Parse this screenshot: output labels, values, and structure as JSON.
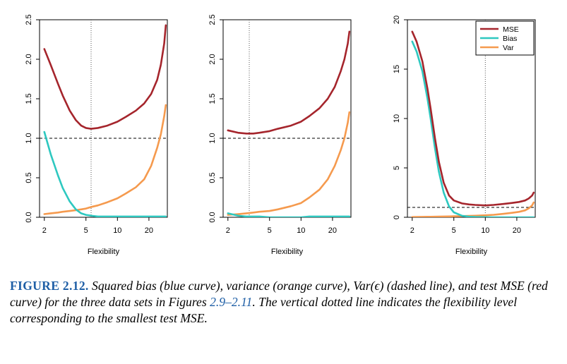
{
  "chart_data": [
    {
      "type": "line",
      "xlabel": "Flexibility",
      "x_scale": "log",
      "xlim": [
        1.8,
        30
      ],
      "ylim": [
        0,
        2.5
      ],
      "x_ticks": [
        2,
        5,
        10,
        20
      ],
      "x_tick_labels": [
        "2",
        "5",
        "10",
        "20"
      ],
      "y_ticks": [
        0,
        0.5,
        1,
        1.5,
        2,
        2.5
      ],
      "y_tick_labels": [
        "0.0",
        "0.5",
        "1.0",
        "1.5",
        "2.0",
        "2.5"
      ],
      "grid": false,
      "irreducible_error": 1.0,
      "min_mse_x": 5.6,
      "series": [
        {
          "name": "MSE",
          "color": "#a5252c",
          "x": [
            2,
            2.3,
            2.7,
            3,
            3.5,
            4,
            4.5,
            5,
            5.6,
            6.5,
            8,
            10,
            12,
            15,
            18,
            21,
            24,
            26,
            28,
            29
          ],
          "y": [
            2.13,
            1.93,
            1.69,
            1.54,
            1.35,
            1.23,
            1.16,
            1.13,
            1.12,
            1.13,
            1.16,
            1.21,
            1.27,
            1.35,
            1.44,
            1.56,
            1.74,
            1.93,
            2.2,
            2.43
          ]
        },
        {
          "name": "Bias",
          "color": "#2ec8c0",
          "x": [
            2,
            2.3,
            2.7,
            3,
            3.5,
            4,
            4.5,
            5,
            5.6,
            6.5,
            8,
            10,
            12,
            15,
            18,
            21,
            24,
            26,
            28,
            29
          ],
          "y": [
            1.08,
            0.8,
            0.53,
            0.37,
            0.2,
            0.1,
            0.05,
            0.03,
            0.02,
            0.01,
            0.01,
            0.01,
            0.01,
            0.01,
            0.01,
            0.01,
            0.01,
            0.01,
            0.01,
            0.01
          ]
        },
        {
          "name": "Var",
          "color": "#f59a4e",
          "x": [
            2,
            2.3,
            2.7,
            3,
            3.5,
            4,
            4.5,
            5,
            5.6,
            6.5,
            8,
            10,
            12,
            15,
            18,
            21,
            24,
            26,
            28,
            29
          ],
          "y": [
            0.04,
            0.05,
            0.06,
            0.07,
            0.08,
            0.09,
            0.1,
            0.11,
            0.13,
            0.15,
            0.19,
            0.24,
            0.3,
            0.38,
            0.48,
            0.65,
            0.88,
            1.05,
            1.28,
            1.42
          ]
        }
      ]
    },
    {
      "type": "line",
      "xlabel": "Flexibility",
      "x_scale": "log",
      "xlim": [
        1.8,
        30
      ],
      "ylim": [
        0,
        2.5
      ],
      "x_ticks": [
        2,
        5,
        10,
        20
      ],
      "x_tick_labels": [
        "2",
        "5",
        "10",
        "20"
      ],
      "y_ticks": [
        0,
        0.5,
        1,
        1.5,
        2,
        2.5
      ],
      "y_tick_labels": [
        "0.0",
        "0.5",
        "1.0",
        "1.5",
        "2.0",
        "2.5"
      ],
      "grid": false,
      "irreducible_error": 1.0,
      "min_mse_x": 3.2,
      "series": [
        {
          "name": "MSE",
          "color": "#a5252c",
          "x": [
            2,
            2.5,
            3,
            3.5,
            4,
            5,
            6,
            8,
            10,
            12,
            15,
            18,
            21,
            24,
            26,
            28,
            29
          ],
          "y": [
            1.1,
            1.07,
            1.06,
            1.06,
            1.07,
            1.09,
            1.12,
            1.16,
            1.21,
            1.28,
            1.38,
            1.5,
            1.65,
            1.85,
            2.0,
            2.2,
            2.35
          ]
        },
        {
          "name": "Bias",
          "color": "#2ec8c0",
          "x": [
            2,
            2.5,
            3,
            3.5,
            4,
            5,
            6,
            8,
            10,
            12,
            15,
            18,
            21,
            24,
            26,
            28,
            29
          ],
          "y": [
            0.05,
            0.02,
            0.01,
            0.01,
            0.01,
            0.0,
            0.0,
            0.0,
            0.0,
            0.01,
            0.01,
            0.01,
            0.01,
            0.01,
            0.01,
            0.01,
            0.01
          ]
        },
        {
          "name": "Var",
          "color": "#f59a4e",
          "x": [
            2,
            2.5,
            3,
            3.5,
            4,
            5,
            6,
            8,
            10,
            12,
            15,
            18,
            21,
            24,
            26,
            28,
            29
          ],
          "y": [
            0.03,
            0.04,
            0.05,
            0.06,
            0.07,
            0.08,
            0.1,
            0.14,
            0.18,
            0.25,
            0.35,
            0.48,
            0.65,
            0.85,
            1.0,
            1.2,
            1.33
          ]
        }
      ]
    },
    {
      "type": "line",
      "xlabel": "Flexibility",
      "x_scale": "log",
      "xlim": [
        1.8,
        30
      ],
      "ylim": [
        0,
        20
      ],
      "x_ticks": [
        2,
        5,
        10,
        20
      ],
      "x_tick_labels": [
        "2",
        "5",
        "10",
        "20"
      ],
      "y_ticks": [
        0,
        5,
        10,
        15,
        20
      ],
      "y_tick_labels": [
        "0",
        "5",
        "10",
        "15",
        "20"
      ],
      "grid": false,
      "irreducible_error": 1.0,
      "min_mse_x": 10,
      "legend": "top-right",
      "series": [
        {
          "name": "MSE",
          "color": "#a5252c",
          "x": [
            2,
            2.2,
            2.5,
            2.8,
            3,
            3.3,
            3.6,
            4,
            4.5,
            5,
            6,
            7,
            8,
            10,
            12,
            15,
            18,
            21,
            24,
            26,
            28,
            29
          ],
          "y": [
            18.8,
            17.8,
            15.8,
            13.0,
            11.0,
            8.0,
            5.6,
            3.5,
            2.2,
            1.7,
            1.4,
            1.3,
            1.25,
            1.2,
            1.25,
            1.35,
            1.45,
            1.55,
            1.7,
            1.9,
            2.2,
            2.5
          ]
        },
        {
          "name": "Bias",
          "color": "#2ec8c0",
          "x": [
            2,
            2.2,
            2.5,
            2.8,
            3,
            3.3,
            3.6,
            4,
            4.5,
            5,
            6,
            7,
            8,
            10,
            12,
            15,
            18,
            21,
            24,
            26,
            28,
            29
          ],
          "y": [
            17.8,
            16.8,
            14.8,
            12.0,
            10.0,
            7.0,
            4.6,
            2.5,
            1.1,
            0.5,
            0.15,
            0.06,
            0.03,
            0.01,
            0.0,
            0.0,
            0.0,
            0.0,
            0.0,
            0.0,
            0.0,
            0.0
          ]
        },
        {
          "name": "Var",
          "color": "#f59a4e",
          "x": [
            2,
            2.2,
            2.5,
            2.8,
            3,
            3.3,
            3.6,
            4,
            4.5,
            5,
            6,
            7,
            8,
            10,
            12,
            15,
            18,
            21,
            24,
            26,
            28,
            29
          ],
          "y": [
            0.02,
            0.03,
            0.04,
            0.05,
            0.05,
            0.06,
            0.07,
            0.08,
            0.09,
            0.1,
            0.12,
            0.14,
            0.16,
            0.2,
            0.25,
            0.35,
            0.45,
            0.55,
            0.7,
            0.9,
            1.2,
            1.5
          ]
        }
      ]
    }
  ],
  "caption": {
    "label": "FIGURE 2.12.",
    "text_part1": " Squared bias (blue curve), variance (orange curve), Var(ϵ) (dashed line), and test MSE (red curve) for the three data sets in Figures ",
    "figure_ref": "2.9–2.11",
    "text_part2": ". The vertical dotted line indicates the flexibility level corresponding to the smallest test MSE."
  }
}
